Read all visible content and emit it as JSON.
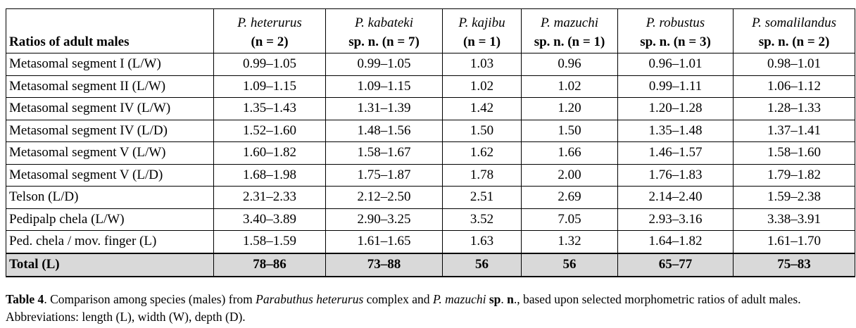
{
  "table": {
    "corner": "Ratios of adult males",
    "columns": [
      {
        "name": "P. heterurus",
        "sub": "(n = 2)"
      },
      {
        "name": "P. kabateki",
        "sub": "sp. n. (n = 7)"
      },
      {
        "name": "P. kajibu",
        "sub": "(n = 1)"
      },
      {
        "name": "P. mazuchi",
        "sub": "sp. n. (n = 1)"
      },
      {
        "name": "P. robustus",
        "sub": "sp. n. (n = 3)"
      },
      {
        "name": "P. somalilandus",
        "sub": "sp. n. (n = 2)"
      }
    ],
    "rows": [
      {
        "label": "Metasomal segment I (L/W)",
        "values": [
          "0.99–1.05",
          "0.99–1.05",
          "1.03",
          "0.96",
          "0.96–1.01",
          "0.98–1.01"
        ]
      },
      {
        "label": "Metasomal segment II (L/W)",
        "values": [
          "1.09–1.15",
          "1.09–1.15",
          "1.02",
          "1.02",
          "0.99–1.11",
          "1.06–1.12"
        ]
      },
      {
        "label": "Metasomal segment IV (L/W)",
        "values": [
          "1.35–1.43",
          "1.31–1.39",
          "1.42",
          "1.20",
          "1.20–1.28",
          "1.28–1.33"
        ]
      },
      {
        "label": "Metasomal segment IV (L/D)",
        "values": [
          "1.52–1.60",
          "1.48–1.56",
          "1.50",
          "1.50",
          "1.35–1.48",
          "1.37–1.41"
        ]
      },
      {
        "label": "Metasomal segment V (L/W)",
        "values": [
          "1.60–1.82",
          "1.58–1.67",
          "1.62",
          "1.66",
          "1.46–1.57",
          "1.58–1.60"
        ]
      },
      {
        "label": "Metasomal segment V (L/D)",
        "values": [
          "1.68–1.98",
          "1.75–1.87",
          "1.78",
          "2.00",
          "1.76–1.83",
          "1.79–1.82"
        ]
      },
      {
        "label": "Telson (L/D)",
        "values": [
          "2.31–2.33",
          "2.12–2.50",
          "2.51",
          "2.69",
          "2.14–2.40",
          "1.59–2.38"
        ]
      },
      {
        "label": "Pedipalp chela (L/W)",
        "values": [
          "3.40–3.89",
          "2.90–3.25",
          "3.52",
          "7.05",
          "2.93–3.16",
          "3.38–3.91"
        ]
      },
      {
        "label": "Ped. chela / mov. finger (L)",
        "values": [
          "1.58–1.59",
          "1.61–1.65",
          "1.63",
          "1.32",
          "1.64–1.82",
          "1.61–1.70"
        ]
      }
    ],
    "total": {
      "label": "Total (L)",
      "values": [
        "78–86",
        "73–88",
        "56",
        "56",
        "65–77",
        "75–83"
      ]
    }
  },
  "caption": {
    "parts": [
      "Table 4",
      ". Comparison among species (males) from ",
      "Parabuthus heterurus",
      " complex and ",
      "P. mazuchi",
      "sp",
      ". ",
      "n",
      "., based upon selected morphometric ratios of adult males. Abbreviations: length (L), width (W), depth (D)."
    ]
  }
}
